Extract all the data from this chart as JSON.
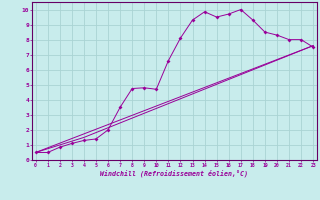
{
  "xlabel": "Windchill (Refroidissement éolien,°C)",
  "bg_color": "#c8ecec",
  "line_color": "#990099",
  "grid_color": "#aad4d4",
  "spine_color": "#660066",
  "xlim": [
    -0.5,
    23
  ],
  "ylim": [
    0,
    10.5
  ],
  "xticks": [
    0,
    1,
    2,
    3,
    4,
    5,
    6,
    7,
    8,
    9,
    10,
    11,
    12,
    13,
    14,
    15,
    16,
    17,
    18,
    19,
    20,
    21,
    22,
    23
  ],
  "yticks": [
    0,
    1,
    2,
    3,
    4,
    5,
    6,
    7,
    8,
    9,
    10
  ],
  "line1_x": [
    0,
    1,
    2,
    3,
    4,
    5,
    6,
    7,
    8,
    9,
    10,
    11,
    12,
    13,
    14,
    15,
    16,
    17,
    18,
    19,
    20,
    21,
    22,
    23
  ],
  "line1_y": [
    0.5,
    0.5,
    0.85,
    1.1,
    1.3,
    1.4,
    2.0,
    3.5,
    4.75,
    4.8,
    4.7,
    6.6,
    8.1,
    9.3,
    9.85,
    9.5,
    9.7,
    10.0,
    9.3,
    8.5,
    8.3,
    8.0,
    8.0,
    7.5
  ],
  "line2_x": [
    0,
    23
  ],
  "line2_y": [
    0.5,
    7.6
  ],
  "line3_x": [
    0,
    4,
    23
  ],
  "line3_y": [
    0.5,
    1.5,
    7.6
  ]
}
